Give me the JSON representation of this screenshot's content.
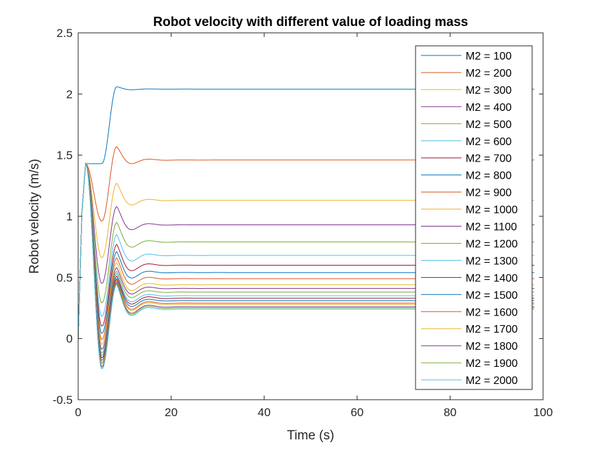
{
  "chart_data": {
    "type": "line",
    "title": "Robot velocity with different value of loading mass",
    "xlabel": "Time (s)",
    "ylabel": "Robot velocity (m/s)",
    "xlim": [
      0,
      100
    ],
    "ylim": [
      -0.5,
      2.5
    ],
    "xticks": [
      0,
      20,
      40,
      60,
      80,
      100
    ],
    "xtick_labels": [
      "0",
      "20",
      "40",
      "60",
      "80",
      "100"
    ],
    "yticks": [
      -0.5,
      0,
      0.5,
      1,
      1.5,
      2,
      2.5
    ],
    "ytick_labels": [
      "-0.5",
      "0",
      "0.5",
      "1",
      "1.5",
      "2",
      "2.5"
    ],
    "grid": false,
    "legend_position": "top-right",
    "series": [
      {
        "name": "M2 = 100",
        "color": "#0072BD",
        "steady": 2.04,
        "dip1": 1.43,
        "peak2": 2.06
      },
      {
        "name": "M2 = 200",
        "color": "#D95319",
        "steady": 1.46,
        "dip1": 0.96,
        "peak2": 1.57
      },
      {
        "name": "M2 = 300",
        "color": "#EDB120",
        "steady": 1.13,
        "dip1": 0.66,
        "peak2": 1.27
      },
      {
        "name": "M2 = 400",
        "color": "#7E2F8E",
        "steady": 0.93,
        "dip1": 0.45,
        "peak2": 1.08
      },
      {
        "name": "M2 = 500",
        "color": "#77AC30",
        "steady": 0.79,
        "dip1": 0.29,
        "peak2": 0.95
      },
      {
        "name": "M2 = 600",
        "color": "#4DBEEE",
        "steady": 0.68,
        "dip1": 0.18,
        "peak2": 0.85
      },
      {
        "name": "M2 = 700",
        "color": "#A2142F",
        "steady": 0.6,
        "dip1": 0.1,
        "peak2": 0.77
      },
      {
        "name": "M2 = 800",
        "color": "#0072BD",
        "steady": 0.54,
        "dip1": 0.04,
        "peak2": 0.71
      },
      {
        "name": "M2 = 900",
        "color": "#D95319",
        "steady": 0.49,
        "dip1": -0.01,
        "peak2": 0.66
      },
      {
        "name": "M2 = 1000",
        "color": "#EDB120",
        "steady": 0.44,
        "dip1": -0.05,
        "peak2": 0.62
      },
      {
        "name": "M2 = 1100",
        "color": "#7E2F8E",
        "steady": 0.41,
        "dip1": -0.09,
        "peak2": 0.58
      },
      {
        "name": "M2 = 1200",
        "color": "#77AC30",
        "steady": 0.38,
        "dip1": -0.12,
        "peak2": 0.55
      },
      {
        "name": "M2 = 1300",
        "color": "#4DBEEE",
        "steady": 0.35,
        "dip1": -0.14,
        "peak2": 0.53
      },
      {
        "name": "M2 = 1400",
        "color": "#A2142F",
        "steady": 0.33,
        "dip1": -0.16,
        "peak2": 0.51
      },
      {
        "name": "M2 = 1500",
        "color": "#0072BD",
        "steady": 0.31,
        "dip1": -0.18,
        "peak2": 0.49
      },
      {
        "name": "M2 = 1600",
        "color": "#D95319",
        "steady": 0.29,
        "dip1": -0.2,
        "peak2": 0.48
      },
      {
        "name": "M2 = 1700",
        "color": "#EDB120",
        "steady": 0.28,
        "dip1": -0.21,
        "peak2": 0.47
      },
      {
        "name": "M2 = 1800",
        "color": "#7E2F8E",
        "steady": 0.26,
        "dip1": -0.23,
        "peak2": 0.46
      },
      {
        "name": "M2 = 1900",
        "color": "#77AC30",
        "steady": 0.25,
        "dip1": -0.24,
        "peak2": 0.45
      },
      {
        "name": "M2 = 2000",
        "color": "#4DBEEE",
        "steady": 0.24,
        "dip1": -0.25,
        "peak2": 0.44
      }
    ]
  }
}
